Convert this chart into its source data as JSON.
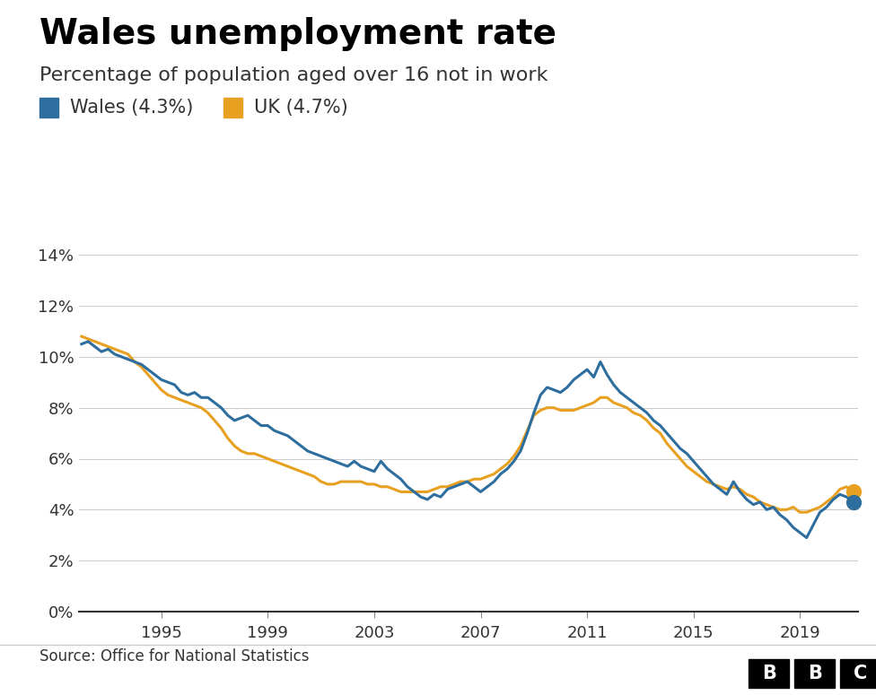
{
  "title": "Wales unemployment rate",
  "subtitle": "Percentage of population aged over 16 not in work",
  "wales_label": "Wales (4.3%)",
  "uk_label": "UK (4.7%)",
  "wales_color": "#2e6e9e",
  "uk_color": "#e8a020",
  "source": "Source: Office for National Statistics",
  "ylim": [
    0,
    15
  ],
  "yticks": [
    0,
    2,
    4,
    6,
    8,
    10,
    12,
    14
  ],
  "xticks": [
    1995,
    1999,
    2003,
    2007,
    2011,
    2015,
    2019
  ],
  "wales_data": [
    [
      1992.0,
      10.5
    ],
    [
      1992.25,
      10.6
    ],
    [
      1992.5,
      10.4
    ],
    [
      1992.75,
      10.2
    ],
    [
      1993.0,
      10.3
    ],
    [
      1993.25,
      10.1
    ],
    [
      1993.5,
      10.0
    ],
    [
      1993.75,
      9.9
    ],
    [
      1994.0,
      9.8
    ],
    [
      1994.25,
      9.7
    ],
    [
      1994.5,
      9.5
    ],
    [
      1994.75,
      9.3
    ],
    [
      1995.0,
      9.1
    ],
    [
      1995.25,
      9.0
    ],
    [
      1995.5,
      8.9
    ],
    [
      1995.75,
      8.6
    ],
    [
      1996.0,
      8.5
    ],
    [
      1996.25,
      8.6
    ],
    [
      1996.5,
      8.4
    ],
    [
      1996.75,
      8.4
    ],
    [
      1997.0,
      8.2
    ],
    [
      1997.25,
      8.0
    ],
    [
      1997.5,
      7.7
    ],
    [
      1997.75,
      7.5
    ],
    [
      1998.0,
      7.6
    ],
    [
      1998.25,
      7.7
    ],
    [
      1998.5,
      7.5
    ],
    [
      1998.75,
      7.3
    ],
    [
      1999.0,
      7.3
    ],
    [
      1999.25,
      7.1
    ],
    [
      1999.5,
      7.0
    ],
    [
      1999.75,
      6.9
    ],
    [
      2000.0,
      6.7
    ],
    [
      2000.25,
      6.5
    ],
    [
      2000.5,
      6.3
    ],
    [
      2000.75,
      6.2
    ],
    [
      2001.0,
      6.1
    ],
    [
      2001.25,
      6.0
    ],
    [
      2001.5,
      5.9
    ],
    [
      2001.75,
      5.8
    ],
    [
      2002.0,
      5.7
    ],
    [
      2002.25,
      5.9
    ],
    [
      2002.5,
      5.7
    ],
    [
      2002.75,
      5.6
    ],
    [
      2003.0,
      5.5
    ],
    [
      2003.25,
      5.9
    ],
    [
      2003.5,
      5.6
    ],
    [
      2003.75,
      5.4
    ],
    [
      2004.0,
      5.2
    ],
    [
      2004.25,
      4.9
    ],
    [
      2004.5,
      4.7
    ],
    [
      2004.75,
      4.5
    ],
    [
      2005.0,
      4.4
    ],
    [
      2005.25,
      4.6
    ],
    [
      2005.5,
      4.5
    ],
    [
      2005.75,
      4.8
    ],
    [
      2006.0,
      4.9
    ],
    [
      2006.25,
      5.0
    ],
    [
      2006.5,
      5.1
    ],
    [
      2006.75,
      4.9
    ],
    [
      2007.0,
      4.7
    ],
    [
      2007.25,
      4.9
    ],
    [
      2007.5,
      5.1
    ],
    [
      2007.75,
      5.4
    ],
    [
      2008.0,
      5.6
    ],
    [
      2008.25,
      5.9
    ],
    [
      2008.5,
      6.3
    ],
    [
      2008.75,
      7.0
    ],
    [
      2009.0,
      7.8
    ],
    [
      2009.25,
      8.5
    ],
    [
      2009.5,
      8.8
    ],
    [
      2009.75,
      8.7
    ],
    [
      2010.0,
      8.6
    ],
    [
      2010.25,
      8.8
    ],
    [
      2010.5,
      9.1
    ],
    [
      2010.75,
      9.3
    ],
    [
      2011.0,
      9.5
    ],
    [
      2011.25,
      9.2
    ],
    [
      2011.5,
      9.8
    ],
    [
      2011.75,
      9.3
    ],
    [
      2012.0,
      8.9
    ],
    [
      2012.25,
      8.6
    ],
    [
      2012.5,
      8.4
    ],
    [
      2012.75,
      8.2
    ],
    [
      2013.0,
      8.0
    ],
    [
      2013.25,
      7.8
    ],
    [
      2013.5,
      7.5
    ],
    [
      2013.75,
      7.3
    ],
    [
      2014.0,
      7.0
    ],
    [
      2014.25,
      6.7
    ],
    [
      2014.5,
      6.4
    ],
    [
      2014.75,
      6.2
    ],
    [
      2015.0,
      5.9
    ],
    [
      2015.25,
      5.6
    ],
    [
      2015.5,
      5.3
    ],
    [
      2015.75,
      5.0
    ],
    [
      2016.0,
      4.8
    ],
    [
      2016.25,
      4.6
    ],
    [
      2016.5,
      5.1
    ],
    [
      2016.75,
      4.7
    ],
    [
      2017.0,
      4.4
    ],
    [
      2017.25,
      4.2
    ],
    [
      2017.5,
      4.3
    ],
    [
      2017.75,
      4.0
    ],
    [
      2018.0,
      4.1
    ],
    [
      2018.25,
      3.8
    ],
    [
      2018.5,
      3.6
    ],
    [
      2018.75,
      3.3
    ],
    [
      2019.0,
      3.1
    ],
    [
      2019.25,
      2.9
    ],
    [
      2019.5,
      3.4
    ],
    [
      2019.75,
      3.9
    ],
    [
      2020.0,
      4.1
    ],
    [
      2020.25,
      4.4
    ],
    [
      2020.5,
      4.6
    ],
    [
      2020.75,
      4.5
    ],
    [
      2021.0,
      4.3
    ]
  ],
  "uk_data": [
    [
      1992.0,
      10.8
    ],
    [
      1992.25,
      10.7
    ],
    [
      1992.5,
      10.6
    ],
    [
      1992.75,
      10.5
    ],
    [
      1993.0,
      10.4
    ],
    [
      1993.25,
      10.3
    ],
    [
      1993.5,
      10.2
    ],
    [
      1993.75,
      10.1
    ],
    [
      1994.0,
      9.8
    ],
    [
      1994.25,
      9.6
    ],
    [
      1994.5,
      9.3
    ],
    [
      1994.75,
      9.0
    ],
    [
      1995.0,
      8.7
    ],
    [
      1995.25,
      8.5
    ],
    [
      1995.5,
      8.4
    ],
    [
      1995.75,
      8.3
    ],
    [
      1996.0,
      8.2
    ],
    [
      1996.25,
      8.1
    ],
    [
      1996.5,
      8.0
    ],
    [
      1996.75,
      7.8
    ],
    [
      1997.0,
      7.5
    ],
    [
      1997.25,
      7.2
    ],
    [
      1997.5,
      6.8
    ],
    [
      1997.75,
      6.5
    ],
    [
      1998.0,
      6.3
    ],
    [
      1998.25,
      6.2
    ],
    [
      1998.5,
      6.2
    ],
    [
      1998.75,
      6.1
    ],
    [
      1999.0,
      6.0
    ],
    [
      1999.25,
      5.9
    ],
    [
      1999.5,
      5.8
    ],
    [
      1999.75,
      5.7
    ],
    [
      2000.0,
      5.6
    ],
    [
      2000.25,
      5.5
    ],
    [
      2000.5,
      5.4
    ],
    [
      2000.75,
      5.3
    ],
    [
      2001.0,
      5.1
    ],
    [
      2001.25,
      5.0
    ],
    [
      2001.5,
      5.0
    ],
    [
      2001.75,
      5.1
    ],
    [
      2002.0,
      5.1
    ],
    [
      2002.25,
      5.1
    ],
    [
      2002.5,
      5.1
    ],
    [
      2002.75,
      5.0
    ],
    [
      2003.0,
      5.0
    ],
    [
      2003.25,
      4.9
    ],
    [
      2003.5,
      4.9
    ],
    [
      2003.75,
      4.8
    ],
    [
      2004.0,
      4.7
    ],
    [
      2004.25,
      4.7
    ],
    [
      2004.5,
      4.7
    ],
    [
      2004.75,
      4.7
    ],
    [
      2005.0,
      4.7
    ],
    [
      2005.25,
      4.8
    ],
    [
      2005.5,
      4.9
    ],
    [
      2005.75,
      4.9
    ],
    [
      2006.0,
      5.0
    ],
    [
      2006.25,
      5.1
    ],
    [
      2006.5,
      5.1
    ],
    [
      2006.75,
      5.2
    ],
    [
      2007.0,
      5.2
    ],
    [
      2007.25,
      5.3
    ],
    [
      2007.5,
      5.4
    ],
    [
      2007.75,
      5.6
    ],
    [
      2008.0,
      5.8
    ],
    [
      2008.25,
      6.1
    ],
    [
      2008.5,
      6.5
    ],
    [
      2008.75,
      7.1
    ],
    [
      2009.0,
      7.7
    ],
    [
      2009.25,
      7.9
    ],
    [
      2009.5,
      8.0
    ],
    [
      2009.75,
      8.0
    ],
    [
      2010.0,
      7.9
    ],
    [
      2010.25,
      7.9
    ],
    [
      2010.5,
      7.9
    ],
    [
      2010.75,
      8.0
    ],
    [
      2011.0,
      8.1
    ],
    [
      2011.25,
      8.2
    ],
    [
      2011.5,
      8.4
    ],
    [
      2011.75,
      8.4
    ],
    [
      2012.0,
      8.2
    ],
    [
      2012.25,
      8.1
    ],
    [
      2012.5,
      8.0
    ],
    [
      2012.75,
      7.8
    ],
    [
      2013.0,
      7.7
    ],
    [
      2013.25,
      7.5
    ],
    [
      2013.5,
      7.2
    ],
    [
      2013.75,
      7.0
    ],
    [
      2014.0,
      6.6
    ],
    [
      2014.25,
      6.3
    ],
    [
      2014.5,
      6.0
    ],
    [
      2014.75,
      5.7
    ],
    [
      2015.0,
      5.5
    ],
    [
      2015.25,
      5.3
    ],
    [
      2015.5,
      5.1
    ],
    [
      2015.75,
      5.0
    ],
    [
      2016.0,
      4.9
    ],
    [
      2016.25,
      4.8
    ],
    [
      2016.5,
      4.9
    ],
    [
      2016.75,
      4.8
    ],
    [
      2017.0,
      4.6
    ],
    [
      2017.25,
      4.5
    ],
    [
      2017.5,
      4.3
    ],
    [
      2017.75,
      4.2
    ],
    [
      2018.0,
      4.1
    ],
    [
      2018.25,
      4.0
    ],
    [
      2018.5,
      4.0
    ],
    [
      2018.75,
      4.1
    ],
    [
      2019.0,
      3.9
    ],
    [
      2019.25,
      3.9
    ],
    [
      2019.5,
      4.0
    ],
    [
      2019.75,
      4.1
    ],
    [
      2020.0,
      4.3
    ],
    [
      2020.25,
      4.5
    ],
    [
      2020.5,
      4.8
    ],
    [
      2020.75,
      4.9
    ],
    [
      2021.0,
      4.7
    ]
  ]
}
